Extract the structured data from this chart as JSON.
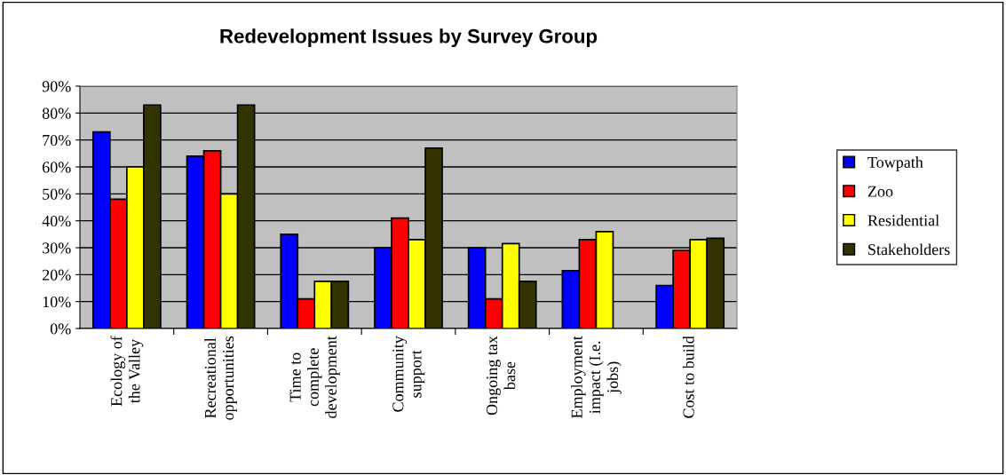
{
  "chart_data": {
    "type": "bar",
    "title": "Redevelopment Issues by Survey Group",
    "categories": [
      "Ecology of\nthe Valley",
      "Recreational\nopportunities",
      "Time to\ncomplete\ndevelopment",
      "Community\nsupport",
      "Ongoing tax\nbase",
      "Employment\nimpact (I.e.\njobs)",
      "Cost to build"
    ],
    "series": [
      {
        "name": "Towpath",
        "color": "#0000ff",
        "values": [
          73,
          64,
          35,
          30,
          30,
          21.5,
          16
        ]
      },
      {
        "name": "Zoo",
        "color": "#ff0000",
        "values": [
          48,
          66,
          11,
          41,
          11,
          33,
          29
        ]
      },
      {
        "name": "Residential",
        "color": "#ffff00",
        "values": [
          60,
          50,
          17.5,
          33,
          31.5,
          36,
          33
        ]
      },
      {
        "name": "Stakeholders",
        "color": "#333300",
        "values": [
          83,
          83,
          17.5,
          67,
          17.5,
          null,
          33.5
        ]
      }
    ],
    "ylim": [
      0,
      90
    ],
    "yticks": [
      {
        "value": 0,
        "label": "0%"
      },
      {
        "value": 10,
        "label": "10%"
      },
      {
        "value": 20,
        "label": "20%"
      },
      {
        "value": 30,
        "label": "30%"
      },
      {
        "value": 40,
        "label": "40%"
      },
      {
        "value": 50,
        "label": "50%"
      },
      {
        "value": 60,
        "label": "60%"
      },
      {
        "value": 70,
        "label": "70%"
      },
      {
        "value": 80,
        "label": "80%"
      },
      {
        "value": 90,
        "label": "90%"
      }
    ],
    "grid": "y",
    "legend": "right"
  }
}
